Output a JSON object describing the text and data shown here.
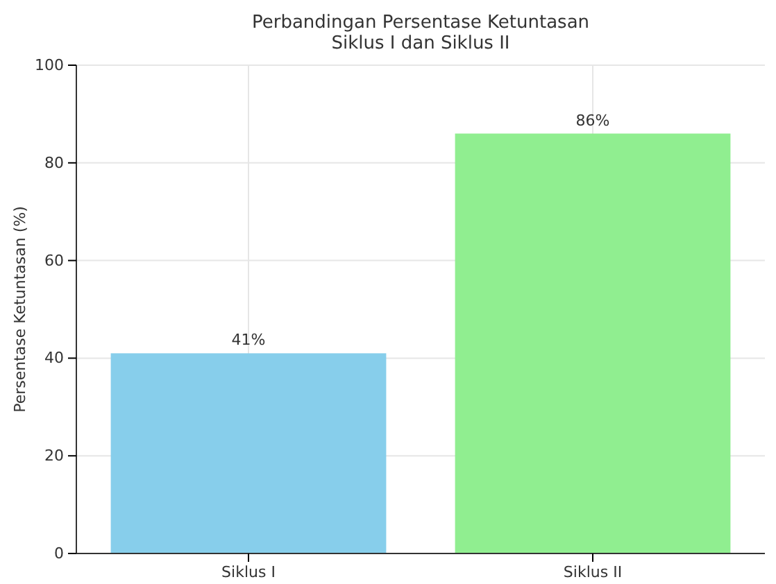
{
  "chart_data": {
    "type": "bar",
    "title": "Perbandingan Persentase Ketuntasan\nSiklus I dan Siklus II",
    "ylabel": "Persentase Ketuntasan (%)",
    "categories": [
      "Siklus I",
      "Siklus II"
    ],
    "values": [
      41,
      86
    ],
    "colors": [
      "#87ceeb",
      "#90ee90"
    ],
    "value_labels": [
      "41%",
      "86%"
    ],
    "ylim": [
      0,
      100
    ],
    "yticks": [
      0,
      20,
      40,
      60,
      80,
      100
    ],
    "grid": true
  }
}
